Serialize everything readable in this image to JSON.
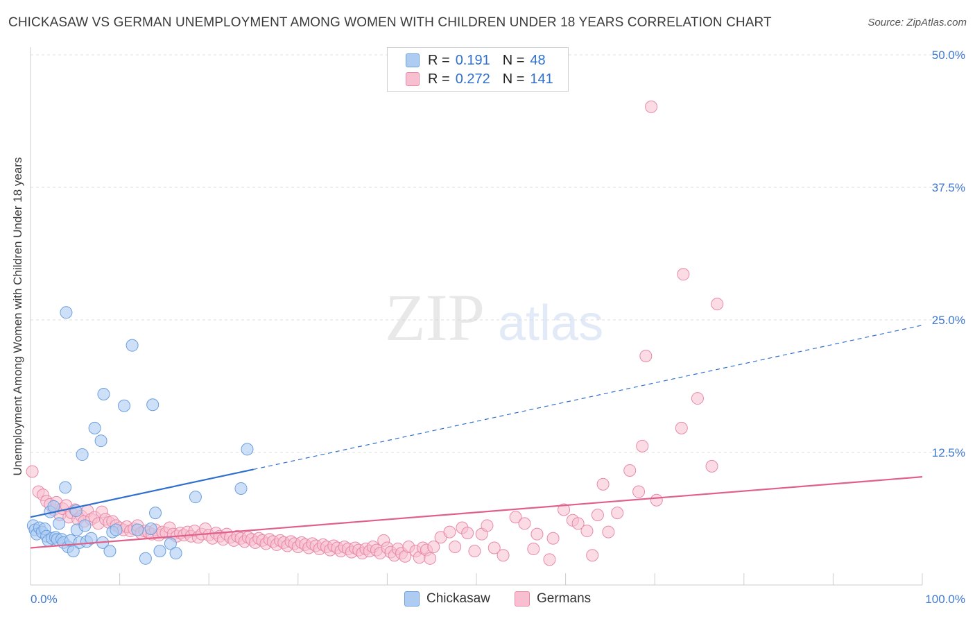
{
  "header": {
    "title": "CHICKASAW VS GERMAN UNEMPLOYMENT AMONG WOMEN WITH CHILDREN UNDER 18 YEARS CORRELATION CHART",
    "source": "Source: ZipAtlas.com"
  },
  "watermark": {
    "zip": "ZIP",
    "atlas": "atlas"
  },
  "legend": {
    "rows": [
      {
        "r_label": "R =",
        "r_value": "0.191",
        "n_label": "N =",
        "n_value": "48"
      },
      {
        "r_label": "R =",
        "r_value": "0.272",
        "n_label": "N =",
        "n_value": "141"
      }
    ],
    "bottom": [
      {
        "label": "Chickasaw"
      },
      {
        "label": "Germans"
      }
    ]
  },
  "colors": {
    "chickasaw_fill": "#aecbf1",
    "chickasaw_stroke": "#6a9fe0",
    "chickasaw_line": "#2f6fce",
    "germans_fill": "#f7bfd0",
    "germans_stroke": "#e889a9",
    "germans_line": "#e0608b",
    "tick_text": "#3f78cc",
    "grid": "#dddddd"
  },
  "chart_data": {
    "type": "scatter",
    "title": "CHICKASAW VS GERMAN UNEMPLOYMENT AMONG WOMEN WITH CHILDREN UNDER 18 YEARS CORRELATION CHART",
    "xlabel": "",
    "ylabel": "Unemployment Among Women with Children Under 18 years",
    "xlim": [
      0,
      100
    ],
    "ylim": [
      0,
      50
    ],
    "x_tick_labels": [
      "0.0%",
      "100.0%"
    ],
    "y_ticks": [
      12.5,
      25,
      37.5,
      50
    ],
    "y_tick_labels": [
      "12.5%",
      "25.0%",
      "37.5%",
      "50.0%"
    ],
    "grid": true,
    "series": [
      {
        "name": "Chickasaw",
        "r": 0.191,
        "n": 48,
        "trend": {
          "x": [
            0,
            25,
            100
          ],
          "y": [
            6.4,
            10.9,
            24.5
          ],
          "solid_until": 25
        },
        "points": [
          [
            0.3,
            5.6
          ],
          [
            0.5,
            5.2
          ],
          [
            0.7,
            4.8
          ],
          [
            1.0,
            5.4
          ],
          [
            1.3,
            5.0
          ],
          [
            1.6,
            5.3
          ],
          [
            1.8,
            4.6
          ],
          [
            2.0,
            4.2
          ],
          [
            2.2,
            6.9
          ],
          [
            2.4,
            4.4
          ],
          [
            2.6,
            7.4
          ],
          [
            2.8,
            4.5
          ],
          [
            3.0,
            4.3
          ],
          [
            3.2,
            5.8
          ],
          [
            3.5,
            4.3
          ],
          [
            3.7,
            4.0
          ],
          [
            3.9,
            9.2
          ],
          [
            4.0,
            25.7
          ],
          [
            4.2,
            3.6
          ],
          [
            4.5,
            4.2
          ],
          [
            4.8,
            3.2
          ],
          [
            5.1,
            7.0
          ],
          [
            5.2,
            5.2
          ],
          [
            5.5,
            4.0
          ],
          [
            5.8,
            12.3
          ],
          [
            6.1,
            5.6
          ],
          [
            6.3,
            4.1
          ],
          [
            6.8,
            4.4
          ],
          [
            7.2,
            14.8
          ],
          [
            7.9,
            13.6
          ],
          [
            8.1,
            4.0
          ],
          [
            8.2,
            18.0
          ],
          [
            8.9,
            3.2
          ],
          [
            9.2,
            5.0
          ],
          [
            9.6,
            5.2
          ],
          [
            10.5,
            16.9
          ],
          [
            11.4,
            22.6
          ],
          [
            12.0,
            5.2
          ],
          [
            12.9,
            2.5
          ],
          [
            13.5,
            5.3
          ],
          [
            13.7,
            17.0
          ],
          [
            14.0,
            6.8
          ],
          [
            14.5,
            3.2
          ],
          [
            15.7,
            3.9
          ],
          [
            16.3,
            3.0
          ],
          [
            18.5,
            8.3
          ],
          [
            23.6,
            9.1
          ],
          [
            24.3,
            12.8
          ]
        ]
      },
      {
        "name": "Germans",
        "r": 0.272,
        "n": 141,
        "trend": {
          "x": [
            0,
            100
          ],
          "y": [
            3.5,
            10.2
          ]
        },
        "points": [
          [
            0.2,
            10.7
          ],
          [
            0.9,
            8.8
          ],
          [
            1.4,
            8.5
          ],
          [
            1.8,
            7.9
          ],
          [
            2.2,
            7.6
          ],
          [
            2.6,
            7.1
          ],
          [
            2.9,
            7.8
          ],
          [
            3.3,
            6.6
          ],
          [
            3.6,
            7.2
          ],
          [
            4.0,
            7.5
          ],
          [
            4.3,
            6.4
          ],
          [
            4.6,
            6.8
          ],
          [
            5.0,
            7.1
          ],
          [
            5.3,
            6.2
          ],
          [
            5.7,
            6.5
          ],
          [
            6.0,
            6.0
          ],
          [
            6.4,
            7.0
          ],
          [
            6.8,
            6.2
          ],
          [
            7.2,
            6.4
          ],
          [
            7.6,
            5.8
          ],
          [
            8.0,
            6.9
          ],
          [
            8.4,
            6.2
          ],
          [
            8.8,
            5.9
          ],
          [
            9.2,
            6.0
          ],
          [
            9.6,
            5.6
          ],
          [
            10.0,
            5.4
          ],
          [
            10.4,
            5.2
          ],
          [
            10.8,
            5.5
          ],
          [
            11.2,
            5.1
          ],
          [
            11.6,
            5.3
          ],
          [
            12.0,
            5.6
          ],
          [
            12.4,
            4.9
          ],
          [
            12.8,
            5.1
          ],
          [
            13.2,
            5.0
          ],
          [
            13.6,
            4.8
          ],
          [
            14.0,
            5.2
          ],
          [
            14.4,
            4.7
          ],
          [
            14.8,
            5.0
          ],
          [
            15.2,
            4.9
          ],
          [
            15.6,
            5.4
          ],
          [
            16.0,
            4.8
          ],
          [
            16.4,
            4.6
          ],
          [
            16.8,
            4.9
          ],
          [
            17.2,
            4.7
          ],
          [
            17.6,
            5.0
          ],
          [
            18.0,
            4.6
          ],
          [
            18.4,
            5.1
          ],
          [
            18.8,
            4.5
          ],
          [
            19.2,
            4.8
          ],
          [
            19.6,
            5.3
          ],
          [
            20.0,
            4.7
          ],
          [
            20.4,
            4.4
          ],
          [
            20.8,
            4.9
          ],
          [
            21.2,
            4.6
          ],
          [
            21.6,
            4.3
          ],
          [
            22.0,
            4.8
          ],
          [
            22.4,
            4.5
          ],
          [
            22.8,
            4.2
          ],
          [
            23.2,
            4.6
          ],
          [
            23.6,
            4.4
          ],
          [
            24.0,
            4.1
          ],
          [
            24.4,
            4.5
          ],
          [
            24.8,
            4.3
          ],
          [
            25.2,
            4.0
          ],
          [
            25.6,
            4.4
          ],
          [
            26.0,
            4.2
          ],
          [
            26.4,
            3.9
          ],
          [
            26.8,
            4.3
          ],
          [
            27.2,
            4.1
          ],
          [
            27.6,
            3.8
          ],
          [
            28.0,
            4.2
          ],
          [
            28.4,
            4.0
          ],
          [
            28.8,
            3.7
          ],
          [
            29.2,
            4.1
          ],
          [
            29.6,
            3.9
          ],
          [
            30.0,
            3.6
          ],
          [
            30.4,
            4.0
          ],
          [
            30.8,
            3.8
          ],
          [
            31.2,
            3.5
          ],
          [
            31.6,
            3.9
          ],
          [
            32.0,
            3.7
          ],
          [
            32.4,
            3.4
          ],
          [
            32.8,
            3.8
          ],
          [
            33.2,
            3.6
          ],
          [
            33.6,
            3.3
          ],
          [
            34.0,
            3.7
          ],
          [
            34.4,
            3.5
          ],
          [
            34.8,
            3.2
          ],
          [
            35.2,
            3.6
          ],
          [
            35.6,
            3.4
          ],
          [
            36.0,
            3.1
          ],
          [
            36.4,
            3.5
          ],
          [
            36.8,
            3.3
          ],
          [
            37.2,
            3.0
          ],
          [
            37.6,
            3.4
          ],
          [
            38.0,
            3.2
          ],
          [
            38.4,
            3.6
          ],
          [
            38.8,
            3.3
          ],
          [
            39.2,
            3.0
          ],
          [
            39.6,
            4.2
          ],
          [
            40.0,
            3.5
          ],
          [
            40.4,
            3.1
          ],
          [
            40.8,
            2.8
          ],
          [
            41.2,
            3.4
          ],
          [
            41.6,
            3.0
          ],
          [
            42.0,
            2.7
          ],
          [
            42.4,
            3.6
          ],
          [
            43.2,
            3.2
          ],
          [
            43.6,
            2.6
          ],
          [
            44.0,
            3.5
          ],
          [
            44.4,
            3.3
          ],
          [
            44.8,
            2.5
          ],
          [
            45.2,
            3.6
          ],
          [
            46.0,
            4.5
          ],
          [
            47.0,
            5.0
          ],
          [
            47.6,
            3.6
          ],
          [
            48.4,
            5.4
          ],
          [
            49.0,
            4.9
          ],
          [
            49.8,
            3.2
          ],
          [
            50.6,
            4.8
          ],
          [
            51.2,
            5.6
          ],
          [
            52.0,
            3.5
          ],
          [
            53.0,
            2.8
          ],
          [
            54.4,
            6.4
          ],
          [
            55.4,
            5.8
          ],
          [
            56.4,
            3.4
          ],
          [
            56.8,
            4.8
          ],
          [
            58.2,
            2.4
          ],
          [
            58.6,
            4.4
          ],
          [
            59.8,
            7.1
          ],
          [
            60.8,
            6.1
          ],
          [
            61.4,
            5.8
          ],
          [
            62.4,
            5.1
          ],
          [
            63.0,
            2.8
          ],
          [
            63.6,
            6.6
          ],
          [
            64.2,
            9.5
          ],
          [
            64.8,
            5.0
          ],
          [
            65.8,
            6.8
          ],
          [
            67.2,
            10.8
          ],
          [
            68.2,
            8.8
          ],
          [
            68.6,
            13.1
          ],
          [
            69.0,
            21.6
          ],
          [
            69.6,
            45.1
          ],
          [
            70.2,
            8.0
          ],
          [
            73.0,
            14.8
          ],
          [
            73.2,
            29.3
          ],
          [
            74.8,
            17.6
          ],
          [
            76.4,
            11.2
          ],
          [
            77.0,
            26.5
          ]
        ]
      }
    ]
  }
}
